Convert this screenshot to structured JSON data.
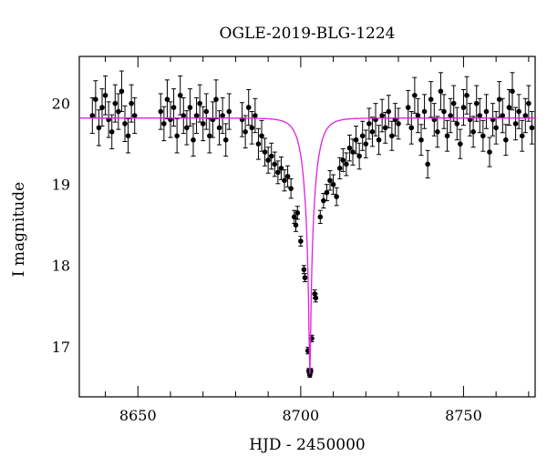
{
  "chart_data": {
    "type": "scatter",
    "title": "OGLE-2019-BLG-1224",
    "xlabel": "HJD - 2450000",
    "ylabel": "I magnitude",
    "xlim": [
      8632,
      8772
    ],
    "ylim": [
      20.58,
      16.38
    ],
    "y_inverted": true,
    "x_ticks": [
      8650,
      8700,
      8750
    ],
    "y_ticks": [
      17,
      18,
      19,
      20
    ],
    "model": {
      "name": "microlensing model",
      "color": "#e020e0",
      "t0": 8702.8,
      "baseline": 19.82,
      "peak": 16.66,
      "width_days": 3.5
    },
    "series": [
      {
        "name": "observations",
        "color": "#000000",
        "points": [
          {
            "x": 8636,
            "y": 19.85,
            "err": 0.22
          },
          {
            "x": 8637,
            "y": 20.05,
            "err": 0.23
          },
          {
            "x": 8638,
            "y": 19.7,
            "err": 0.22
          },
          {
            "x": 8639,
            "y": 19.95,
            "err": 0.23
          },
          {
            "x": 8640,
            "y": 20.1,
            "err": 0.24
          },
          {
            "x": 8641,
            "y": 19.8,
            "err": 0.22
          },
          {
            "x": 8642,
            "y": 19.65,
            "err": 0.21
          },
          {
            "x": 8643,
            "y": 20.0,
            "err": 0.23
          },
          {
            "x": 8644,
            "y": 19.9,
            "err": 0.22
          },
          {
            "x": 8645,
            "y": 20.15,
            "err": 0.25
          },
          {
            "x": 8646,
            "y": 19.75,
            "err": 0.22
          },
          {
            "x": 8647,
            "y": 19.6,
            "err": 0.21
          },
          {
            "x": 8648,
            "y": 20.0,
            "err": 0.23
          },
          {
            "x": 8649,
            "y": 19.85,
            "err": 0.22
          },
          {
            "x": 8657,
            "y": 19.9,
            "err": 0.22
          },
          {
            "x": 8658,
            "y": 19.75,
            "err": 0.21
          },
          {
            "x": 8659,
            "y": 20.05,
            "err": 0.24
          },
          {
            "x": 8660,
            "y": 19.8,
            "err": 0.22
          },
          {
            "x": 8661,
            "y": 19.95,
            "err": 0.23
          },
          {
            "x": 8662,
            "y": 19.6,
            "err": 0.21
          },
          {
            "x": 8663,
            "y": 20.1,
            "err": 0.24
          },
          {
            "x": 8664,
            "y": 19.85,
            "err": 0.22
          },
          {
            "x": 8665,
            "y": 19.7,
            "err": 0.21
          },
          {
            "x": 8666,
            "y": 19.95,
            "err": 0.23
          },
          {
            "x": 8667,
            "y": 19.55,
            "err": 0.2
          },
          {
            "x": 8668,
            "y": 19.85,
            "err": 0.22
          },
          {
            "x": 8669,
            "y": 20.0,
            "err": 0.23
          },
          {
            "x": 8670,
            "y": 19.75,
            "err": 0.21
          },
          {
            "x": 8671,
            "y": 19.9,
            "err": 0.22
          },
          {
            "x": 8672,
            "y": 19.6,
            "err": 0.21
          },
          {
            "x": 8673,
            "y": 19.8,
            "err": 0.22
          },
          {
            "x": 8674,
            "y": 20.05,
            "err": 0.24
          },
          {
            "x": 8675,
            "y": 19.7,
            "err": 0.21
          },
          {
            "x": 8676,
            "y": 19.85,
            "err": 0.22
          },
          {
            "x": 8677,
            "y": 19.55,
            "err": 0.2
          },
          {
            "x": 8678,
            "y": 19.9,
            "err": 0.22
          },
          {
            "x": 8682,
            "y": 19.8,
            "err": 0.21
          },
          {
            "x": 8683,
            "y": 19.65,
            "err": 0.2
          },
          {
            "x": 8684,
            "y": 19.95,
            "err": 0.22
          },
          {
            "x": 8685,
            "y": 19.7,
            "err": 0.2
          },
          {
            "x": 8686,
            "y": 19.85,
            "err": 0.21
          },
          {
            "x": 8687,
            "y": 19.5,
            "err": 0.19
          },
          {
            "x": 8688,
            "y": 19.6,
            "err": 0.19
          },
          {
            "x": 8689,
            "y": 19.4,
            "err": 0.17
          },
          {
            "x": 8690,
            "y": 19.3,
            "err": 0.16
          },
          {
            "x": 8691,
            "y": 19.35,
            "err": 0.16
          },
          {
            "x": 8692,
            "y": 19.25,
            "err": 0.15
          },
          {
            "x": 8693,
            "y": 19.15,
            "err": 0.14
          },
          {
            "x": 8694,
            "y": 19.2,
            "err": 0.14
          },
          {
            "x": 8695,
            "y": 19.05,
            "err": 0.13
          },
          {
            "x": 8696,
            "y": 19.1,
            "err": 0.13
          },
          {
            "x": 8697,
            "y": 18.95,
            "err": 0.12
          },
          {
            "x": 8698,
            "y": 18.6,
            "err": 0.08
          },
          {
            "x": 8698.5,
            "y": 18.5,
            "err": 0.08
          },
          {
            "x": 8699,
            "y": 18.65,
            "err": 0.08
          },
          {
            "x": 8700,
            "y": 18.3,
            "err": 0.06
          },
          {
            "x": 8701,
            "y": 17.95,
            "err": 0.05
          },
          {
            "x": 8701.3,
            "y": 17.85,
            "err": 0.05
          },
          {
            "x": 8702.2,
            "y": 16.95,
            "err": 0.04
          },
          {
            "x": 8702.5,
            "y": 16.7,
            "err": 0.03
          },
          {
            "x": 8702.8,
            "y": 16.65,
            "err": 0.03
          },
          {
            "x": 8703.1,
            "y": 16.7,
            "err": 0.03
          },
          {
            "x": 8703.4,
            "y": 17.1,
            "err": 0.04
          },
          {
            "x": 8704.3,
            "y": 17.65,
            "err": 0.05
          },
          {
            "x": 8704.6,
            "y": 17.6,
            "err": 0.05
          },
          {
            "x": 8706,
            "y": 18.6,
            "err": 0.08
          },
          {
            "x": 8707,
            "y": 18.8,
            "err": 0.09
          },
          {
            "x": 8708,
            "y": 18.9,
            "err": 0.1
          },
          {
            "x": 8709,
            "y": 19.05,
            "err": 0.12
          },
          {
            "x": 8710,
            "y": 19.0,
            "err": 0.12
          },
          {
            "x": 8711,
            "y": 18.85,
            "err": 0.11
          },
          {
            "x": 8712,
            "y": 19.2,
            "err": 0.13
          },
          {
            "x": 8713,
            "y": 19.3,
            "err": 0.14
          },
          {
            "x": 8714,
            "y": 19.25,
            "err": 0.14
          },
          {
            "x": 8715,
            "y": 19.45,
            "err": 0.16
          },
          {
            "x": 8716,
            "y": 19.4,
            "err": 0.16
          },
          {
            "x": 8717,
            "y": 19.55,
            "err": 0.17
          },
          {
            "x": 8718,
            "y": 19.35,
            "err": 0.16
          },
          {
            "x": 8719,
            "y": 19.6,
            "err": 0.18
          },
          {
            "x": 8720,
            "y": 19.5,
            "err": 0.17
          },
          {
            "x": 8721,
            "y": 19.75,
            "err": 0.19
          },
          {
            "x": 8722,
            "y": 19.65,
            "err": 0.18
          },
          {
            "x": 8723,
            "y": 19.8,
            "err": 0.2
          },
          {
            "x": 8724,
            "y": 19.55,
            "err": 0.18
          },
          {
            "x": 8725,
            "y": 19.85,
            "err": 0.2
          },
          {
            "x": 8726,
            "y": 19.7,
            "err": 0.19
          },
          {
            "x": 8727,
            "y": 19.9,
            "err": 0.2
          },
          {
            "x": 8728,
            "y": 19.6,
            "err": 0.18
          },
          {
            "x": 8729,
            "y": 19.8,
            "err": 0.2
          },
          {
            "x": 8730,
            "y": 19.75,
            "err": 0.19
          },
          {
            "x": 8733,
            "y": 19.95,
            "err": 0.21
          },
          {
            "x": 8734,
            "y": 19.7,
            "err": 0.2
          },
          {
            "x": 8735,
            "y": 20.1,
            "err": 0.22
          },
          {
            "x": 8736,
            "y": 19.85,
            "err": 0.21
          },
          {
            "x": 8737,
            "y": 19.55,
            "err": 0.19
          },
          {
            "x": 8738,
            "y": 19.9,
            "err": 0.21
          },
          {
            "x": 8739,
            "y": 19.25,
            "err": 0.17
          },
          {
            "x": 8740,
            "y": 20.05,
            "err": 0.22
          },
          {
            "x": 8741,
            "y": 19.8,
            "err": 0.2
          },
          {
            "x": 8742,
            "y": 19.65,
            "err": 0.19
          },
          {
            "x": 8743,
            "y": 20.15,
            "err": 0.23
          },
          {
            "x": 8744,
            "y": 19.9,
            "err": 0.21
          },
          {
            "x": 8745,
            "y": 19.6,
            "err": 0.19
          },
          {
            "x": 8746,
            "y": 19.85,
            "err": 0.21
          },
          {
            "x": 8747,
            "y": 20.0,
            "err": 0.22
          },
          {
            "x": 8748,
            "y": 19.75,
            "err": 0.2
          },
          {
            "x": 8749,
            "y": 19.5,
            "err": 0.18
          },
          {
            "x": 8750,
            "y": 19.95,
            "err": 0.22
          },
          {
            "x": 8751,
            "y": 20.1,
            "err": 0.23
          },
          {
            "x": 8752,
            "y": 19.8,
            "err": 0.2
          },
          {
            "x": 8753,
            "y": 19.65,
            "err": 0.19
          },
          {
            "x": 8754,
            "y": 20.0,
            "err": 0.22
          },
          {
            "x": 8755,
            "y": 19.85,
            "err": 0.21
          },
          {
            "x": 8756,
            "y": 19.6,
            "err": 0.19
          },
          {
            "x": 8757,
            "y": 19.9,
            "err": 0.21
          },
          {
            "x": 8758,
            "y": 19.4,
            "err": 0.18
          },
          {
            "x": 8759,
            "y": 19.8,
            "err": 0.2
          },
          {
            "x": 8760,
            "y": 19.7,
            "err": 0.2
          },
          {
            "x": 8761,
            "y": 20.05,
            "err": 0.22
          },
          {
            "x": 8762,
            "y": 19.85,
            "err": 0.21
          },
          {
            "x": 8763,
            "y": 19.55,
            "err": 0.19
          },
          {
            "x": 8764,
            "y": 19.95,
            "err": 0.22
          },
          {
            "x": 8765,
            "y": 20.15,
            "err": 0.23
          },
          {
            "x": 8766,
            "y": 19.75,
            "err": 0.2
          },
          {
            "x": 8767,
            "y": 19.9,
            "err": 0.21
          },
          {
            "x": 8768,
            "y": 19.6,
            "err": 0.19
          },
          {
            "x": 8769,
            "y": 19.85,
            "err": 0.21
          },
          {
            "x": 8770,
            "y": 20.0,
            "err": 0.22
          },
          {
            "x": 8771,
            "y": 19.7,
            "err": 0.2
          }
        ]
      }
    ]
  }
}
